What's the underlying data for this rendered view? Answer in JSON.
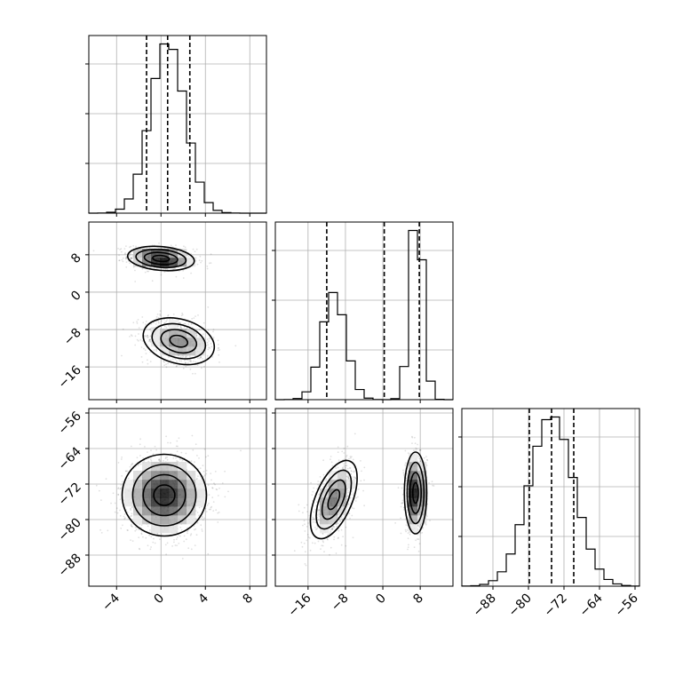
{
  "chart_data": {
    "type": "corner",
    "grid": true,
    "parameters": [
      {
        "index": 0,
        "range": [
          -6.5,
          9.5
        ],
        "ticks": [
          -4,
          0,
          4,
          8
        ],
        "tick_labels": [
          "−4",
          "0",
          "4",
          "8"
        ],
        "quantiles": [
          -1.3,
          0.6,
          2.6
        ],
        "modes": [
          {
            "mean": 0.6,
            "sd": 1.55,
            "weight": 1.0
          }
        ]
      },
      {
        "index": 1,
        "range": [
          -23,
          15
        ],
        "ticks": [
          -16,
          -8,
          0,
          8
        ],
        "tick_labels": [
          "−16",
          "−8",
          "0",
          "8"
        ],
        "quantiles": [
          -12,
          0.3,
          7.8
        ],
        "modes": [
          {
            "mean": -10.5,
            "sd": 2.5,
            "weight": 0.5
          },
          {
            "mean": 7.2,
            "sd": 1.3,
            "weight": 0.5
          }
        ]
      },
      {
        "index": 2,
        "range": [
          -95,
          -55
        ],
        "ticks": [
          -88,
          -80,
          -72,
          -64,
          -56
        ],
        "tick_labels": [
          "−88",
          "−80",
          "−72",
          "−64",
          "−56"
        ],
        "quantiles": [
          -79.8,
          -74.8,
          -69.8
        ],
        "modes": [
          {
            "mean": -74.8,
            "sd": 5.0,
            "weight": 1.0
          }
        ]
      }
    ],
    "joint_clusters": {
      "p1_vs_p0": [
        {
          "x_mean": 0.0,
          "y_mean": 7.2,
          "x_sd": 1.5,
          "y_sd": 1.3,
          "rho": -0.2,
          "weight": 0.5
        },
        {
          "x_mean": 1.6,
          "y_mean": -10.5,
          "x_sd": 1.6,
          "y_sd": 2.5,
          "rho": -0.25,
          "weight": 0.5
        }
      ],
      "p2_vs_p0": [
        {
          "x_mean": 0.3,
          "y_mean": -74.5,
          "x_sd": 1.9,
          "y_sd": 4.6,
          "rho": 0.0,
          "weight": 1.0
        }
      ],
      "p2_vs_p1": [
        {
          "x_mean": -10.5,
          "y_mean": -75.5,
          "x_sd": 2.5,
          "y_sd": 4.4,
          "rho": 0.55,
          "weight": 0.5
        },
        {
          "x_mean": 7.0,
          "y_mean": -74.0,
          "x_sd": 1.2,
          "y_sd": 4.6,
          "rho": 0.0,
          "weight": 0.5
        }
      ]
    },
    "contour_levels": [
      0.5,
      1.0,
      1.5,
      2.0
    ]
  }
}
